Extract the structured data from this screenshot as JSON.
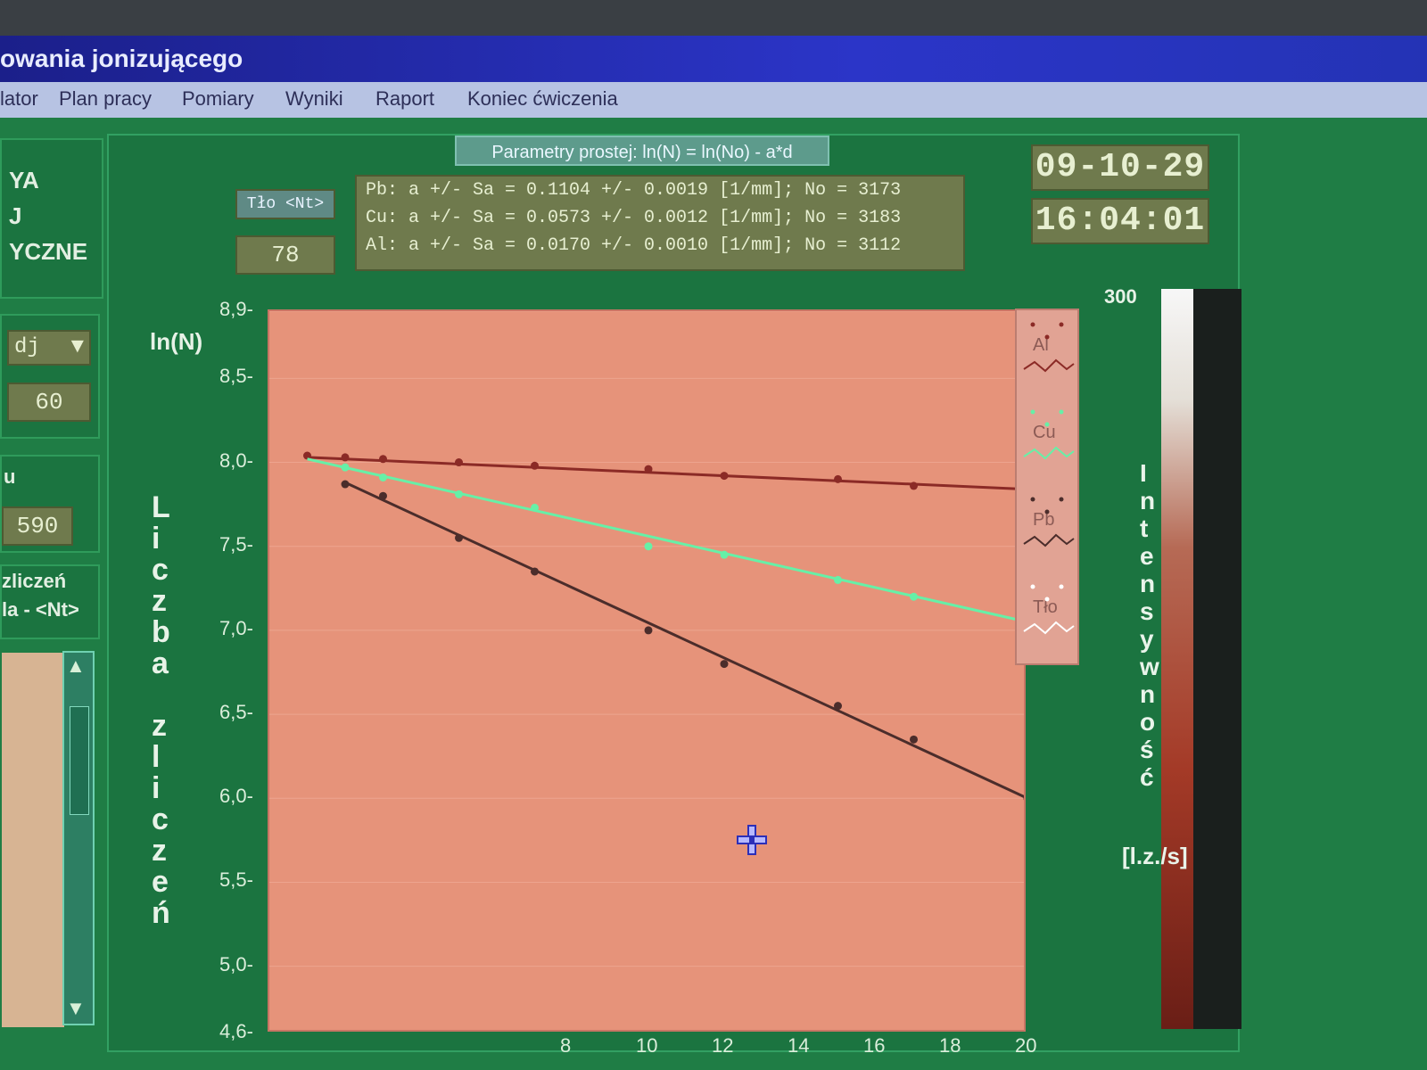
{
  "window": {
    "title": "owania jonizującego"
  },
  "menu": {
    "items": [
      "lator",
      "Plan pracy",
      "Pomiary",
      "Wyniki",
      "Raport",
      "Koniec ćwiczenia"
    ]
  },
  "left_panel": {
    "header_lines": [
      "YA",
      "J",
      "YCZNE"
    ],
    "dropdown_value": "dj",
    "value_box": "60",
    "section_label": "u",
    "time_value": "590",
    "counts_label_lines": [
      "zliczeń",
      "la - <Nt>"
    ]
  },
  "params": {
    "title": "Parametry prostej: ln(N) = ln(No) - a*d",
    "tlo_label": "Tło <Nt>",
    "tlo_value": "78",
    "rows": [
      "Pb:  a +/- Sa = 0.1104 +/- 0.0019 [1/mm];  No = 3173",
      "Cu:  a +/- Sa = 0.0573 +/- 0.0012 [1/mm];  No = 3183",
      "Al:  a +/- Sa = 0.0170 +/- 0.0010 [1/mm];  No = 3112"
    ]
  },
  "datetime": {
    "date": "09-10-29",
    "time": "16:04:01"
  },
  "chart_labels": {
    "y_unit_label": "ln(N)",
    "y_title": "Liczba zliczeń",
    "intensity_title": "Intensywność",
    "intensity_unit": "[l.z./s]",
    "intensity_top_tick": "300"
  },
  "chart_data": {
    "type": "line",
    "xlim": [
      0,
      20
    ],
    "ylim": [
      4.6,
      8.9
    ],
    "y_ticks": [
      "4,6",
      "5,0",
      "5,5",
      "6,0",
      "6,5",
      "7,0",
      "7,5",
      "8,0",
      "8,5",
      "8,9"
    ],
    "x_ticks": [
      "8",
      "10",
      "12",
      "14",
      "16",
      "18",
      "20"
    ],
    "legend": [
      "Al",
      "Cu",
      "Pb",
      "Tło"
    ],
    "series": [
      {
        "name": "Al",
        "color": "#8b2a26",
        "points": [
          [
            1,
            8.04
          ],
          [
            2,
            8.03
          ],
          [
            3,
            8.02
          ],
          [
            5,
            8.0
          ],
          [
            7,
            7.98
          ],
          [
            10,
            7.96
          ],
          [
            12,
            7.92
          ],
          [
            15,
            7.9
          ],
          [
            17,
            7.86
          ]
        ],
        "fit": [
          [
            1,
            8.03
          ],
          [
            20,
            7.84
          ]
        ]
      },
      {
        "name": "Cu",
        "color": "#66f0a7",
        "points": [
          [
            2,
            7.97
          ],
          [
            3,
            7.91
          ],
          [
            5,
            7.81
          ],
          [
            7,
            7.73
          ],
          [
            10,
            7.5
          ],
          [
            12,
            7.45
          ],
          [
            15,
            7.3
          ],
          [
            17,
            7.2
          ],
          [
            20,
            7.05
          ]
        ],
        "fit": [
          [
            1,
            8.02
          ],
          [
            20,
            7.05
          ]
        ]
      },
      {
        "name": "Pb",
        "color": "#4b2d2b",
        "points": [
          [
            2,
            7.87
          ],
          [
            3,
            7.8
          ],
          [
            5,
            7.55
          ],
          [
            7,
            7.35
          ],
          [
            10,
            7.0
          ],
          [
            12,
            6.8
          ],
          [
            15,
            6.55
          ],
          [
            17,
            6.35
          ],
          [
            20,
            6.0
          ]
        ],
        "fit": [
          [
            2,
            7.88
          ],
          [
            20,
            6.0
          ]
        ]
      }
    ]
  }
}
